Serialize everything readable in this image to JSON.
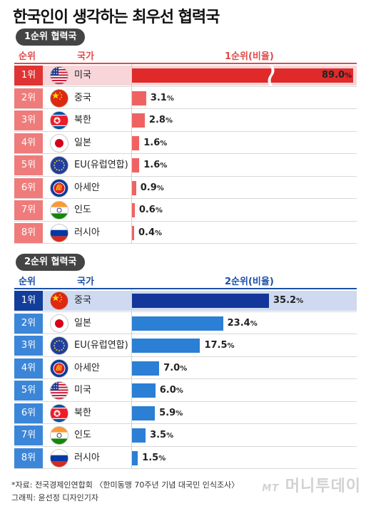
{
  "title": "한국인이 생각하는 최우선 협력국",
  "headers": {
    "rank": "순위",
    "country": "국가"
  },
  "sections": [
    {
      "pill": "1순위 협력국",
      "ratio_header": "1순위(비율)",
      "rows": [
        {
          "rank": "1위",
          "country": "미국",
          "flag": "us-flag-icon",
          "value": 89.0,
          "label": "89.0",
          "pct": "%"
        },
        {
          "rank": "2위",
          "country": "중국",
          "flag": "china-flag-icon",
          "value": 3.1,
          "label": "3.1",
          "pct": "%"
        },
        {
          "rank": "3위",
          "country": "북한",
          "flag": "north-korea-flag-icon",
          "value": 2.8,
          "label": "2.8",
          "pct": "%"
        },
        {
          "rank": "4위",
          "country": "일본",
          "flag": "japan-flag-icon",
          "value": 1.6,
          "label": "1.6",
          "pct": "%"
        },
        {
          "rank": "5위",
          "country": "EU(유럽연합)",
          "flag": "eu-flag-icon",
          "value": 1.6,
          "label": "1.6",
          "pct": "%"
        },
        {
          "rank": "6위",
          "country": "아세안",
          "flag": "asean-flag-icon",
          "value": 0.9,
          "label": "0.9",
          "pct": "%"
        },
        {
          "rank": "7위",
          "country": "인도",
          "flag": "india-flag-icon",
          "value": 0.6,
          "label": "0.6",
          "pct": "%"
        },
        {
          "rank": "8위",
          "country": "러시아",
          "flag": "russia-flag-icon",
          "value": 0.4,
          "label": "0.4",
          "pct": "%"
        }
      ]
    },
    {
      "pill": "2순위 협력국",
      "ratio_header": "2순위(비율)",
      "rows": [
        {
          "rank": "1위",
          "country": "중국",
          "flag": "china-flag-icon",
          "value": 35.2,
          "label": "35.2",
          "pct": "%"
        },
        {
          "rank": "2위",
          "country": "일본",
          "flag": "japan-flag-icon",
          "value": 23.4,
          "label": "23.4",
          "pct": "%"
        },
        {
          "rank": "3위",
          "country": "EU(유럽연합)",
          "flag": "eu-flag-icon",
          "value": 17.5,
          "label": "17.5",
          "pct": "%"
        },
        {
          "rank": "4위",
          "country": "아세안",
          "flag": "asean-flag-icon",
          "value": 7.0,
          "label": "7.0",
          "pct": "%"
        },
        {
          "rank": "5위",
          "country": "미국",
          "flag": "us-flag-icon",
          "value": 6.0,
          "label": "6.0",
          "pct": "%"
        },
        {
          "rank": "6위",
          "country": "북한",
          "flag": "north-korea-flag-icon",
          "value": 5.9,
          "label": "5.9",
          "pct": "%"
        },
        {
          "rank": "7위",
          "country": "인도",
          "flag": "india-flag-icon",
          "value": 3.5,
          "label": "3.5",
          "pct": "%"
        },
        {
          "rank": "8위",
          "country": "러시아",
          "flag": "russia-flag-icon",
          "value": 1.5,
          "label": "1.5",
          "pct": "%"
        }
      ]
    }
  ],
  "footer": {
    "source": "*자료: 전국경제인연합회 〈한미동맹 70주년 기념 대국민 인식조사〉",
    "credit": "그래픽: 윤선정 디자인기자",
    "logo_prefix": "MT",
    "logo_text": "머니투데이"
  },
  "colors": {
    "section1_accent": "#e04a4a",
    "section1_bar": "#f06262",
    "section1_top_bar": "#e02a2a",
    "section2_accent": "#1a4fa8",
    "section2_bar": "#2b7fd4",
    "section2_top_bar": "#12369a"
  },
  "chart_data": [
    {
      "type": "bar",
      "categories": [
        "미국",
        "중국",
        "북한",
        "일본",
        "EU(유럽연합)",
        "아세안",
        "인도",
        "러시아"
      ],
      "values": [
        89.0,
        3.1,
        2.8,
        1.6,
        1.6,
        0.9,
        0.6,
        0.4
      ],
      "ylabel": "1순위(비율)",
      "axis_break": true
    },
    {
      "type": "bar",
      "categories": [
        "중국",
        "일본",
        "EU(유럽연합)",
        "아세안",
        "미국",
        "북한",
        "인도",
        "러시아"
      ],
      "values": [
        35.2,
        23.4,
        17.5,
        7.0,
        6.0,
        5.9,
        3.5,
        1.5
      ],
      "ylabel": "2순위(비율)"
    }
  ]
}
